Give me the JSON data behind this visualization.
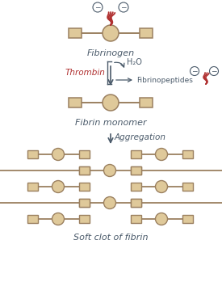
{
  "bg_color": "#ffffff",
  "fill_color": "#dfc99a",
  "edge_color": "#9b8060",
  "text_dark": "#4a5a6a",
  "text_red": "#b03030",
  "fig_width": 2.75,
  "fig_height": 3.49,
  "labels": {
    "fibrinogen": "Fibrinogen",
    "thrombin": "Thrombin",
    "h2o": "H₂O",
    "fibrinopeptides": "Fibrinopeptides",
    "fibrin_monomer": "Fibrin monomer",
    "aggregation": "Aggregation",
    "soft_clot": "Soft clot of fibrin"
  }
}
